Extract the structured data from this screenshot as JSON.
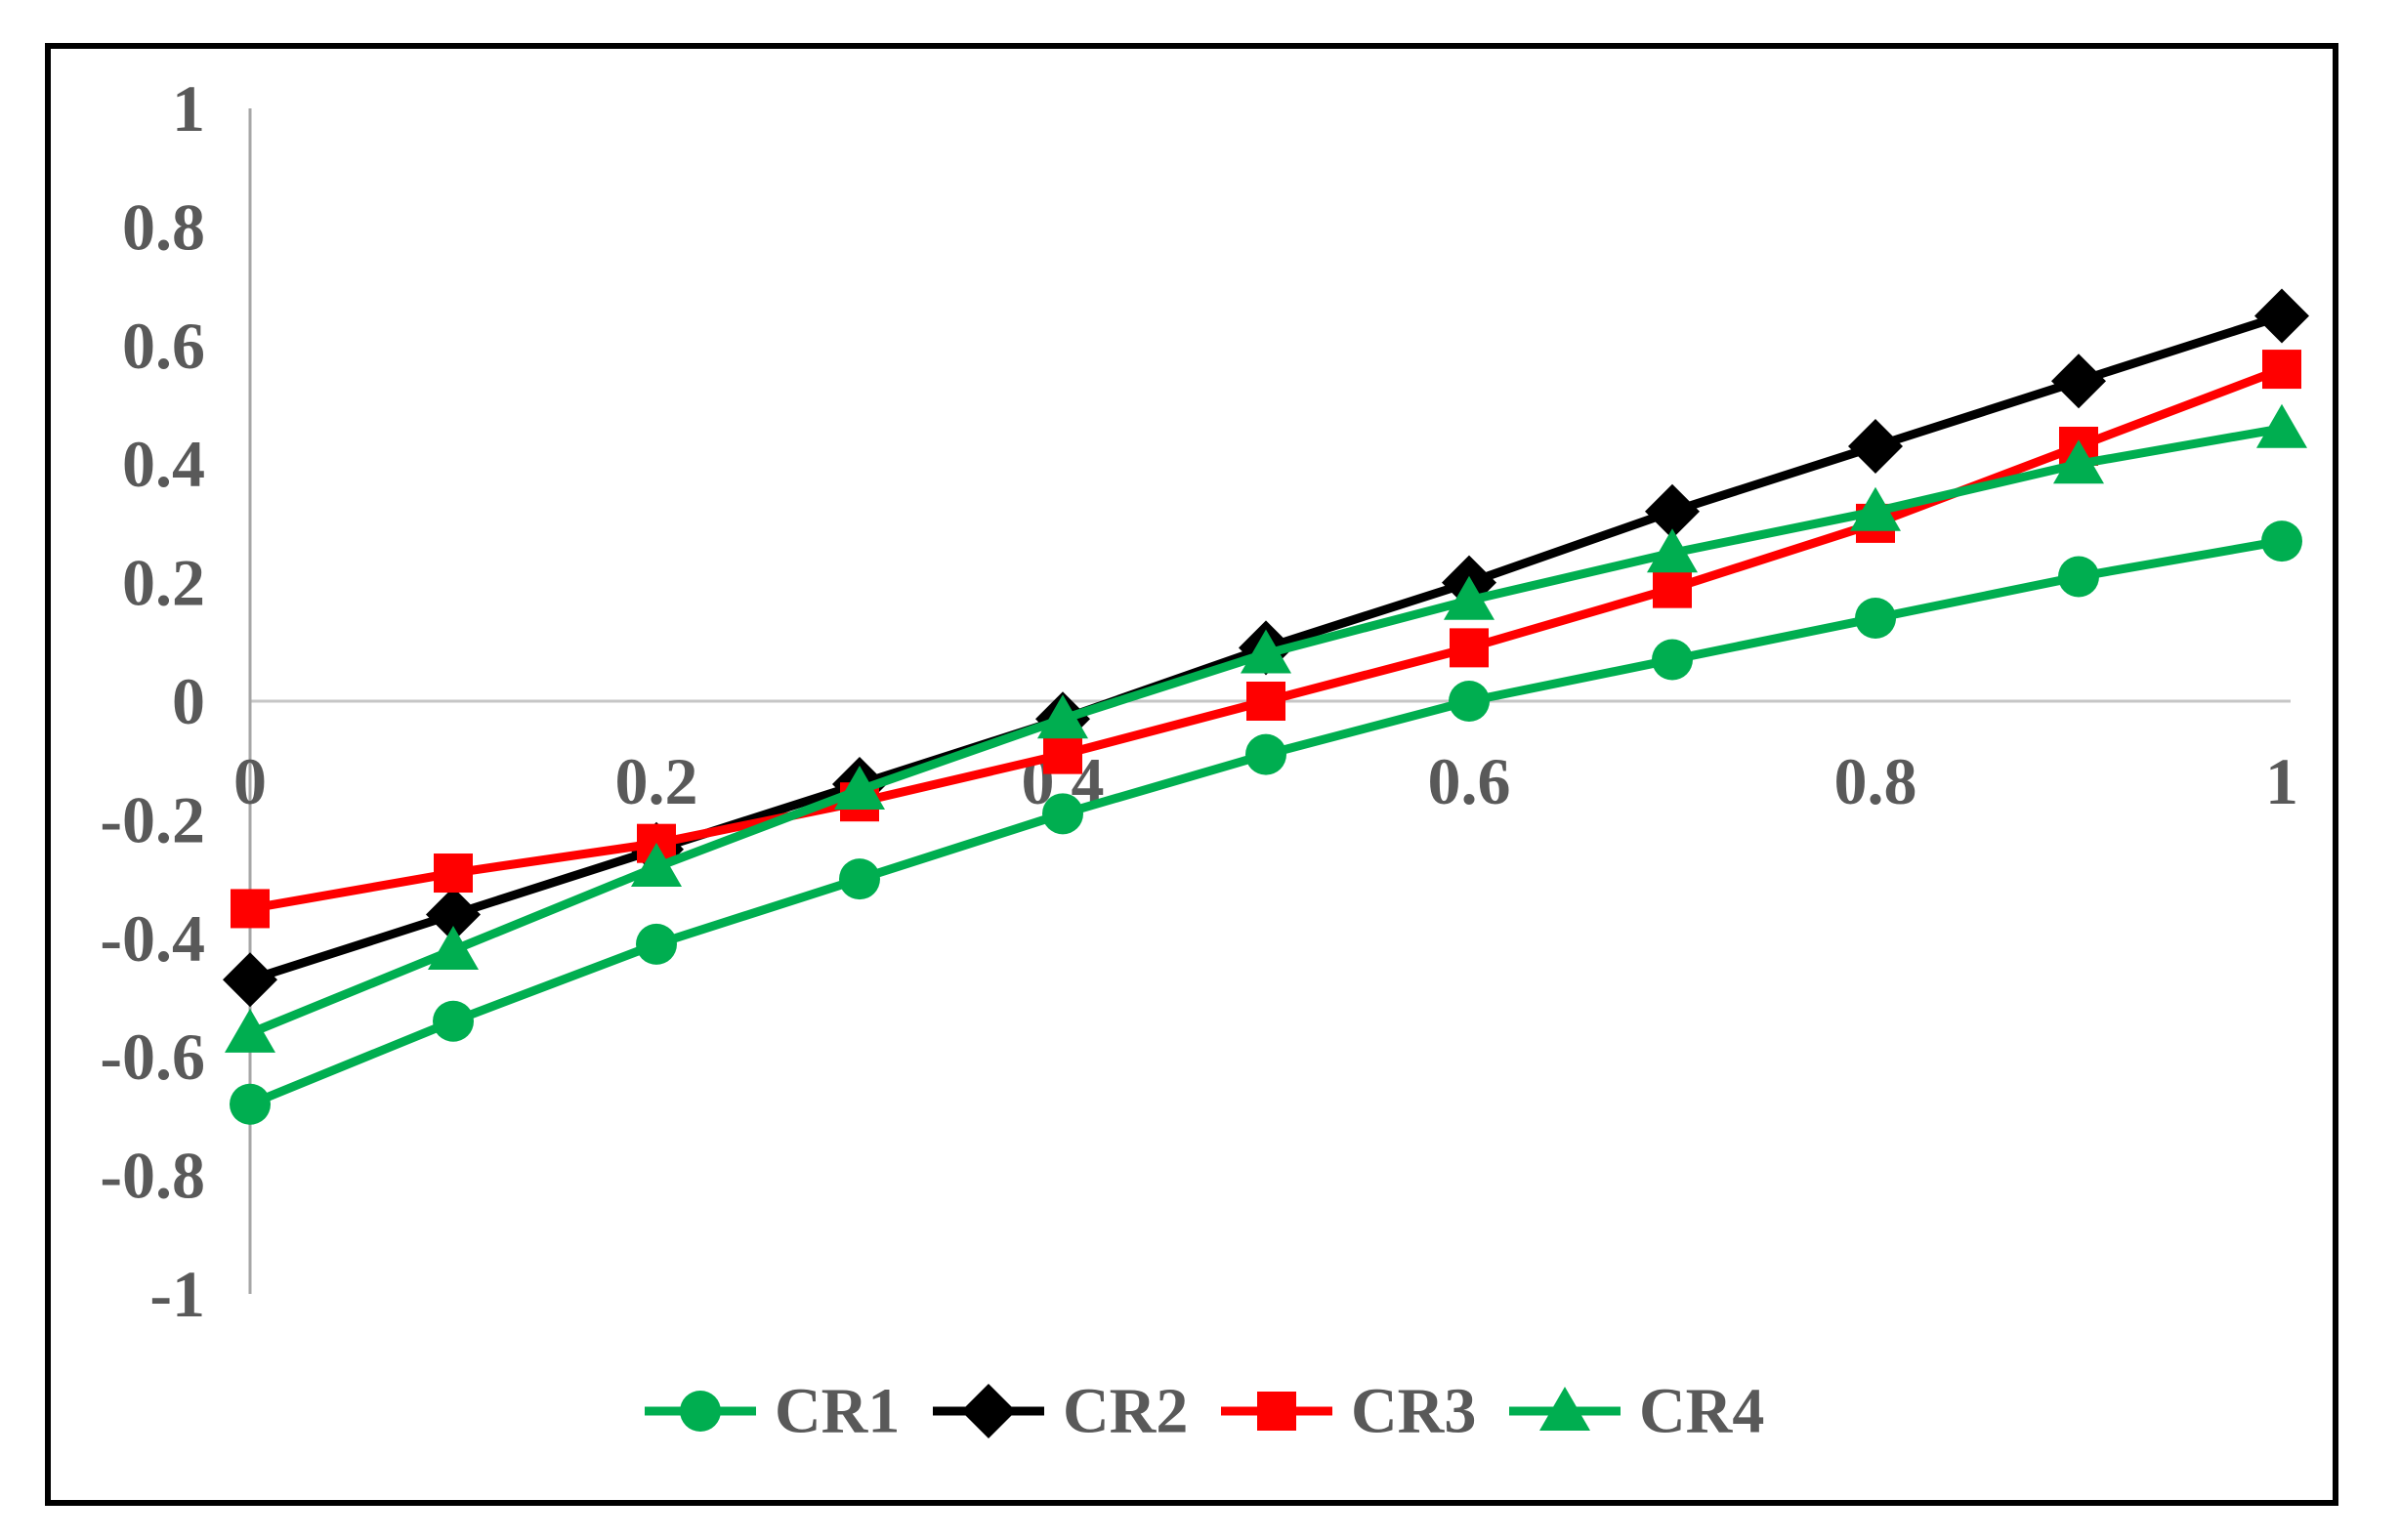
{
  "figure": {
    "description": "Line chart comparing four correlation series CR1-CR4 over x from 0 to 1"
  },
  "chart_data": {
    "type": "line",
    "x": [
      0,
      0.1,
      0.2,
      0.3,
      0.4,
      0.5,
      0.6,
      0.7,
      0.8,
      0.9,
      1.0
    ],
    "series": [
      {
        "name": "CR1",
        "color": "#00AE50",
        "marker": "circle",
        "values": [
          -0.68,
          -0.54,
          -0.41,
          -0.3,
          -0.19,
          -0.09,
          0.0,
          0.07,
          0.14,
          0.21,
          0.27
        ]
      },
      {
        "name": "CR2",
        "color": "#000000",
        "marker": "diamond",
        "values": [
          -0.47,
          -0.36,
          -0.25,
          -0.14,
          -0.03,
          0.09,
          0.2,
          0.32,
          0.43,
          0.54,
          0.65
        ]
      },
      {
        "name": "CR3",
        "color": "#FF0000",
        "marker": "square",
        "values": [
          -0.35,
          -0.29,
          -0.24,
          -0.17,
          -0.09,
          0.0,
          0.09,
          0.19,
          0.3,
          0.43,
          0.56
        ]
      },
      {
        "name": "CR4",
        "color": "#00AE50",
        "marker": "triangle",
        "values": [
          -0.56,
          -0.42,
          -0.28,
          -0.15,
          -0.03,
          0.08,
          0.17,
          0.25,
          0.32,
          0.4,
          0.46
        ]
      }
    ],
    "x_tick_labels": [
      "0",
      "0.2",
      "0.4",
      "0.6",
      "0.8",
      "1"
    ],
    "y_tick_labels": [
      "1",
      "0.8",
      "0.6",
      "0.4",
      "0.2",
      "0",
      "-0.2",
      "-0.4",
      "-0.6",
      "-0.8",
      "-1"
    ],
    "xlim": [
      0,
      1
    ],
    "ylim": [
      -1,
      1
    ],
    "title": "",
    "xlabel": "",
    "ylabel": "",
    "grid": "zero-line-only",
    "legend_position": "bottom-center",
    "legend_entries": [
      "CR1",
      "CR2",
      "CR3",
      "CR4"
    ],
    "colors": {
      "tick_label": "#595959",
      "legend_label": "#595959",
      "y_axis_line": "#A6A6A6",
      "zero_gridline": "#C6C6C6",
      "border": "#000000"
    }
  }
}
